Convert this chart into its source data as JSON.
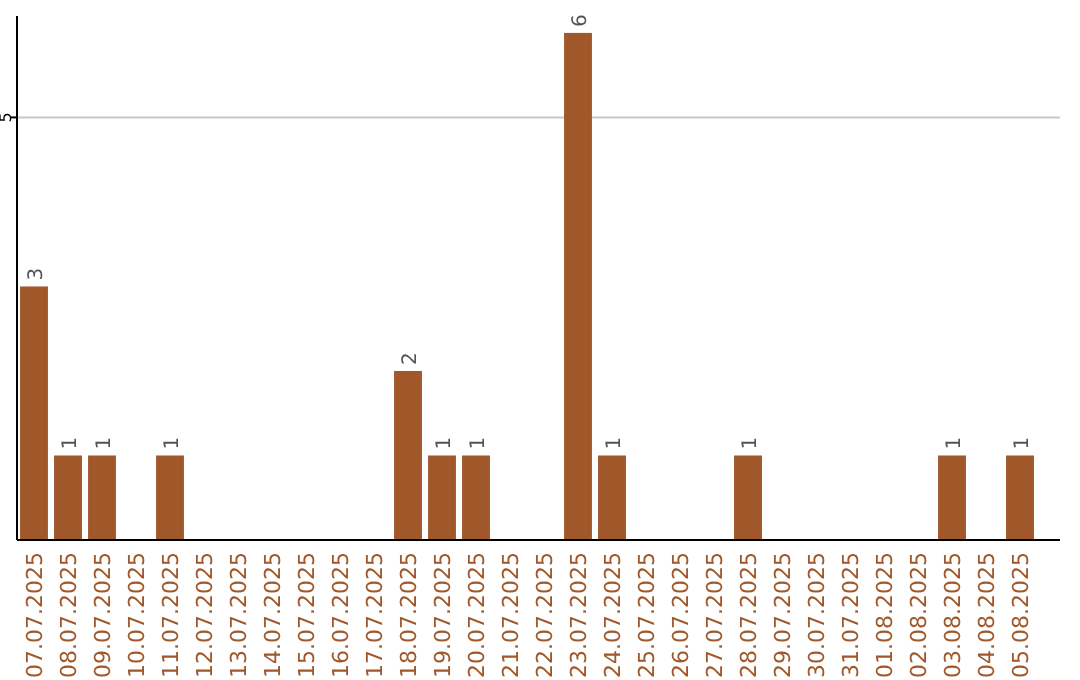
{
  "chart_data": {
    "type": "bar",
    "categories": [
      "07.07.2025",
      "08.07.2025",
      "09.07.2025",
      "10.07.2025",
      "11.07.2025",
      "12.07.2025",
      "13.07.2025",
      "14.07.2025",
      "15.07.2025",
      "16.07.2025",
      "17.07.2025",
      "18.07.2025",
      "19.07.2025",
      "20.07.2025",
      "21.07.2025",
      "22.07.2025",
      "23.07.2025",
      "24.07.2025",
      "25.07.2025",
      "26.07.2025",
      "27.07.2025",
      "28.07.2025",
      "29.07.2025",
      "30.07.2025",
      "31.07.2025",
      "01.08.2025",
      "02.08.2025",
      "03.08.2025",
      "04.08.2025",
      "05.08.2025"
    ],
    "values": [
      3,
      1,
      1,
      0,
      1,
      0,
      0,
      0,
      0,
      0,
      0,
      2,
      1,
      1,
      0,
      0,
      6,
      1,
      0,
      0,
      0,
      1,
      0,
      0,
      0,
      0,
      0,
      1,
      0,
      1
    ],
    "value_labels": [
      "3",
      "1",
      "1",
      null,
      "1",
      null,
      null,
      null,
      null,
      null,
      null,
      "2",
      "1",
      "1",
      null,
      null,
      "6",
      "1",
      null,
      null,
      null,
      "1",
      null,
      null,
      null,
      null,
      null,
      "1",
      null,
      "1"
    ],
    "color": "#a0582a",
    "ylim": [
      0,
      6.2
    ],
    "yticks": [
      5
    ],
    "grid": "y"
  }
}
